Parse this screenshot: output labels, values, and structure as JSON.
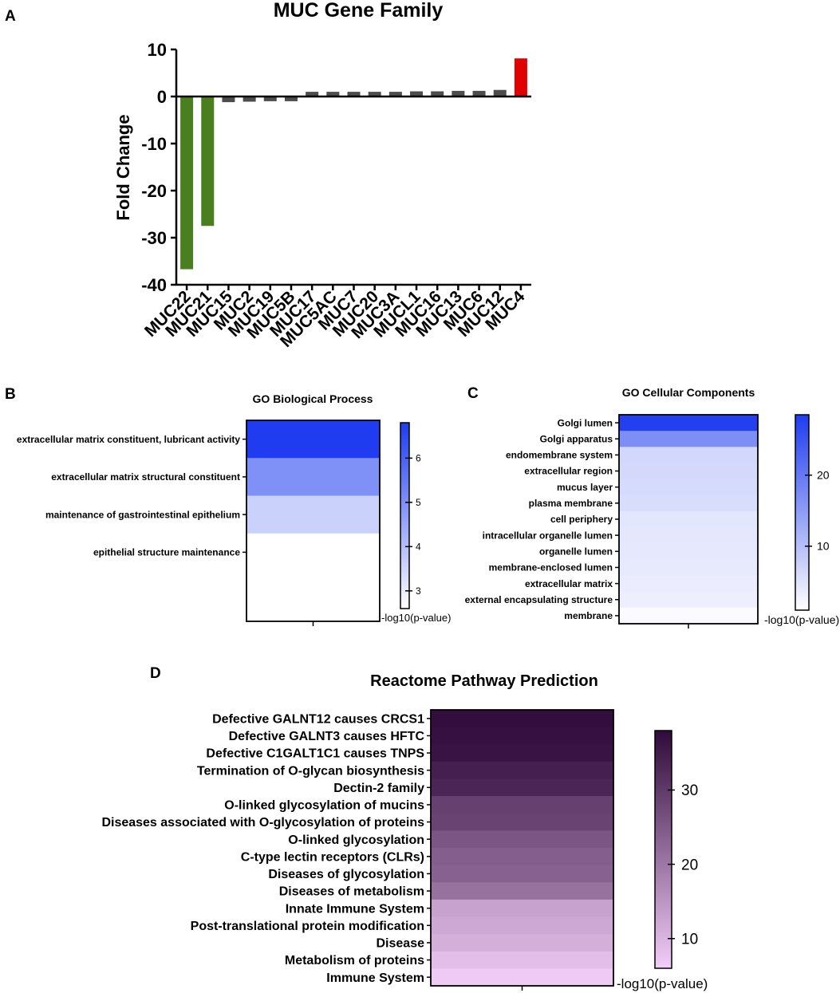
{
  "panels": {
    "A": "A",
    "B": "B",
    "C": "C",
    "D": "D"
  },
  "chart_data": [
    {
      "id": "A",
      "type": "bar",
      "title": "MUC Gene Family",
      "xlabel": "",
      "ylabel": "Fold Change",
      "ylim": [
        -40,
        10
      ],
      "yticks": [
        "10",
        "0",
        "-10",
        "-20",
        "-30",
        "-40"
      ],
      "categories": [
        "MUC22",
        "MUC21",
        "MUC15",
        "MUC2",
        "MUC19",
        "MUC5B",
        "MUC17",
        "MUC5AC",
        "MUC7",
        "MUC20",
        "MUC3A",
        "MUCL1",
        "MUC16",
        "MUC13",
        "MUC6",
        "MUC12",
        "MUC4"
      ],
      "values": [
        -36.7,
        -27.5,
        -1.2,
        -1.1,
        -1.0,
        -1.0,
        1.0,
        1.0,
        1.0,
        1.0,
        1.0,
        1.1,
        1.1,
        1.2,
        1.2,
        1.4,
        8.1
      ],
      "colors": [
        "#4a7f1f",
        "#4a7f1f",
        "#4d4d4d",
        "#4d4d4d",
        "#4d4d4d",
        "#4d4d4d",
        "#4d4d4d",
        "#4d4d4d",
        "#4d4d4d",
        "#4d4d4d",
        "#4d4d4d",
        "#4d4d4d",
        "#4d4d4d",
        "#4d4d4d",
        "#4d4d4d",
        "#4d4d4d",
        "#e00000"
      ]
    },
    {
      "id": "B",
      "type": "heatmap",
      "title": "GO Biological Process",
      "categories": [
        "extracellular matrix constituent, lubricant activity",
        "extracellular matrix structural constituent",
        "maintenance of gastrointestinal epithelium",
        "epithelial structure maintenance"
      ],
      "values": [
        6.8,
        5.0,
        3.6,
        2.6
      ],
      "scale_min": 2.6,
      "scale_max": 6.8,
      "scale_ticks": [
        6,
        5,
        4,
        3
      ],
      "scale_label": "-log10(p-value)",
      "color_low": "#ffffff",
      "color_high": "#1f3cf0"
    },
    {
      "id": "C",
      "type": "heatmap",
      "title": "GO Cellular Components",
      "categories": [
        "Golgi lumen",
        "Golgi apparatus",
        "endomembrane system",
        "extracellular region",
        "mucus layer",
        "plasma membrane",
        "cell periphery",
        "intracellular organelle lumen",
        "organelle lumen",
        "membrane-enclosed lumen",
        "extracellular matrix",
        "external encapsulating structure",
        "membrane"
      ],
      "values": [
        28,
        17,
        6.5,
        6.3,
        6.1,
        5.8,
        4.4,
        4.2,
        4.1,
        4.0,
        3.5,
        3.2,
        1.5
      ],
      "scale_min": 1,
      "scale_max": 28.5,
      "scale_ticks": [
        20,
        10
      ],
      "scale_label": "-log10(p-value)",
      "color_low": "#ffffff",
      "color_high": "#1f3cf0"
    },
    {
      "id": "D",
      "type": "heatmap",
      "title": "Reactome Pathway Prediction",
      "categories": [
        "Defective GALNT12 causes CRCS1",
        "Defective GALNT3 causes HFTC",
        "Defective C1GALT1C1 causes TNPS",
        "Termination of O-glycan biosynthesis",
        "Dectin-2 family",
        "O-linked glycosylation of mucins",
        "Diseases associated with O-glycosylation of proteins",
        "O-linked glycosylation",
        "C-type lectin receptors (CLRs)",
        "Diseases of glycosylation",
        "Diseases of metabolism",
        "Innate Immune System",
        "Post-translational protein modification",
        "Disease",
        "Metabolism of proteins",
        "Immune System"
      ],
      "values": [
        37.5,
        37.0,
        36.5,
        34.5,
        33.5,
        29.0,
        28.5,
        25.5,
        24.0,
        23.5,
        21.0,
        13.0,
        12.0,
        11.0,
        8.5,
        6.5
      ],
      "scale_min": 6,
      "scale_max": 38,
      "scale_ticks": [
        30,
        20,
        10
      ],
      "scale_label": "-log10(p-value)",
      "color_low": "#f2cdf8",
      "color_high": "#2f0a3a"
    }
  ]
}
